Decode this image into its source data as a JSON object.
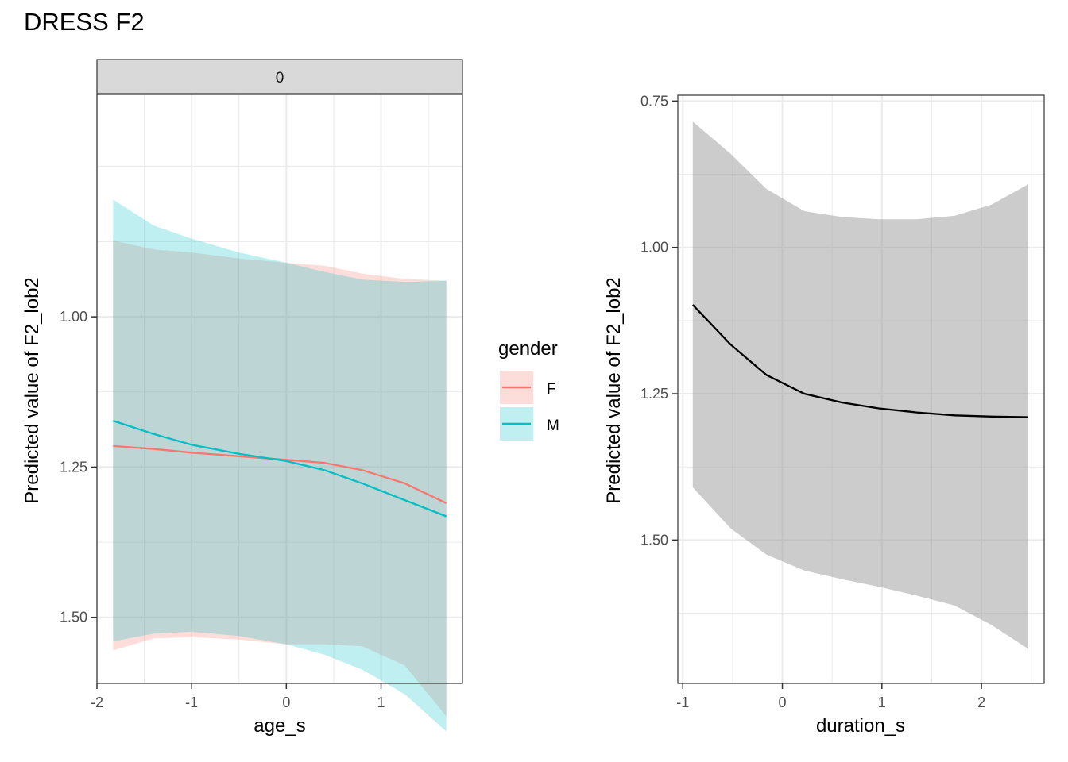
{
  "title": "DRESS F2",
  "colors": {
    "F": "#F8766D",
    "M": "#00BFC4",
    "F_ribbon": "#F8766D",
    "M_ribbon": "#00BFC4",
    "gray_ribbon": "#999999",
    "line_black": "#000000",
    "strip_bg": "#D9D9D9"
  },
  "legend": {
    "title": "gender",
    "items": [
      {
        "label": "F",
        "key": "F"
      },
      {
        "label": "M",
        "key": "M"
      }
    ],
    "position": "right"
  },
  "chart_data": [
    {
      "type": "line",
      "panel": "left",
      "strip_label": "0",
      "xlabel": "age_s",
      "ylabel": "Predicted value of F2_lob2",
      "xlim": [
        -2.0,
        1.86
      ],
      "ylim": [
        0.63,
        1.61
      ],
      "y_reversed": true,
      "grid": true,
      "xticks": [
        -2,
        -1,
        0,
        1
      ],
      "xtick_labels": [
        "-2",
        "-1",
        "0",
        "1"
      ],
      "yticks": [
        1.0,
        1.25,
        1.5
      ],
      "ytick_labels": [
        "1.00",
        "1.25",
        "1.50"
      ],
      "series": [
        {
          "name": "F",
          "x": [
            -1.83,
            -1.4,
            -1.0,
            -0.5,
            0.0,
            0.4,
            0.8,
            1.25,
            1.69
          ],
          "y": [
            1.215,
            1.22,
            1.226,
            1.232,
            1.238,
            1.243,
            1.255,
            1.277,
            1.31
          ],
          "lower": [
            0.873,
            0.888,
            0.893,
            0.903,
            0.91,
            0.915,
            0.928,
            0.937,
            0.94
          ],
          "upper": [
            1.555,
            1.535,
            1.533,
            1.537,
            1.545,
            1.545,
            1.548,
            1.58,
            1.665
          ]
        },
        {
          "name": "M",
          "x": [
            -1.83,
            -1.4,
            -1.0,
            -0.5,
            0.0,
            0.4,
            0.8,
            1.25,
            1.69
          ],
          "y": [
            1.173,
            1.195,
            1.213,
            1.228,
            1.24,
            1.255,
            1.277,
            1.305,
            1.332
          ],
          "lower": [
            0.805,
            0.848,
            0.87,
            0.893,
            0.91,
            0.925,
            0.938,
            0.942,
            0.94
          ],
          "upper": [
            1.54,
            1.527,
            1.524,
            1.531,
            1.545,
            1.562,
            1.587,
            1.628,
            1.69
          ]
        }
      ]
    },
    {
      "type": "line",
      "panel": "right",
      "xlabel": "duration_s",
      "ylabel": "Predicted value of F2_lob2",
      "xlim": [
        -1.05,
        2.63
      ],
      "ylim": [
        0.74,
        1.745
      ],
      "y_reversed": true,
      "grid": true,
      "xticks": [
        -1,
        0,
        1,
        2
      ],
      "xtick_labels": [
        "-1",
        "0",
        "1",
        "2"
      ],
      "yticks": [
        0.75,
        1.0,
        1.25,
        1.5
      ],
      "ytick_labels": [
        "0.75",
        "1.00",
        "1.25",
        "1.50"
      ],
      "series": [
        {
          "name": "duration_s",
          "x": [
            -0.9,
            -0.52,
            -0.16,
            0.22,
            0.6,
            0.97,
            1.35,
            1.73,
            2.1,
            2.47
          ],
          "y": [
            1.098,
            1.166,
            1.218,
            1.25,
            1.265,
            1.275,
            1.282,
            1.287,
            1.289,
            1.29
          ],
          "lower": [
            0.785,
            0.84,
            0.9,
            0.938,
            0.948,
            0.952,
            0.952,
            0.946,
            0.927,
            0.892
          ],
          "upper": [
            1.41,
            1.48,
            1.525,
            1.552,
            1.567,
            1.58,
            1.595,
            1.612,
            1.645,
            1.686
          ]
        }
      ]
    }
  ]
}
